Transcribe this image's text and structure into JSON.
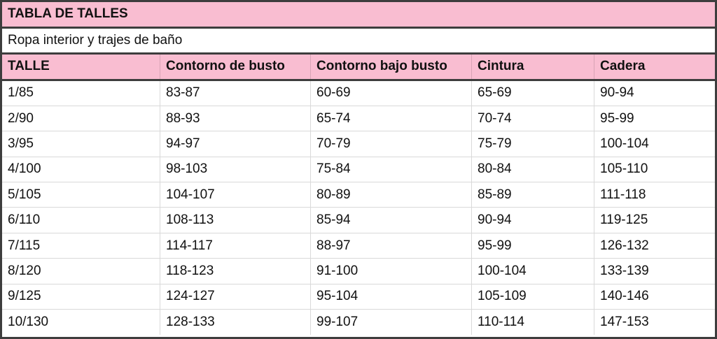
{
  "title": "TABLA DE TALLES",
  "subtitle": "Ropa interior y trajes de baño",
  "colors": {
    "header_bg": "#f9bdd1",
    "border": "#3d3d3d"
  },
  "columns": [
    "TALLE",
    "Contorno de busto",
    "Contorno bajo busto",
    "Cintura",
    "Cadera"
  ],
  "rows": [
    [
      "1/85",
      "83-87",
      "60-69",
      "65-69",
      "90-94"
    ],
    [
      "2/90",
      "88-93",
      "65-74",
      "70-74",
      "95-99"
    ],
    [
      "3/95",
      "94-97",
      "70-79",
      "75-79",
      "100-104"
    ],
    [
      "4/100",
      "98-103",
      "75-84",
      "80-84",
      "105-110"
    ],
    [
      "5/105",
      "104-107",
      "80-89",
      "85-89",
      "111-118"
    ],
    [
      "6/110",
      "108-113",
      "85-94",
      "90-94",
      "119-125"
    ],
    [
      "7/115",
      "114-117",
      "88-97",
      "95-99",
      "126-132"
    ],
    [
      "8/120",
      "118-123",
      "91-100",
      "100-104",
      "133-139"
    ],
    [
      "9/125",
      "124-127",
      "95-104",
      "105-109",
      "140-146"
    ],
    [
      "10/130",
      "128-133",
      "99-107",
      "110-114",
      "147-153"
    ]
  ]
}
